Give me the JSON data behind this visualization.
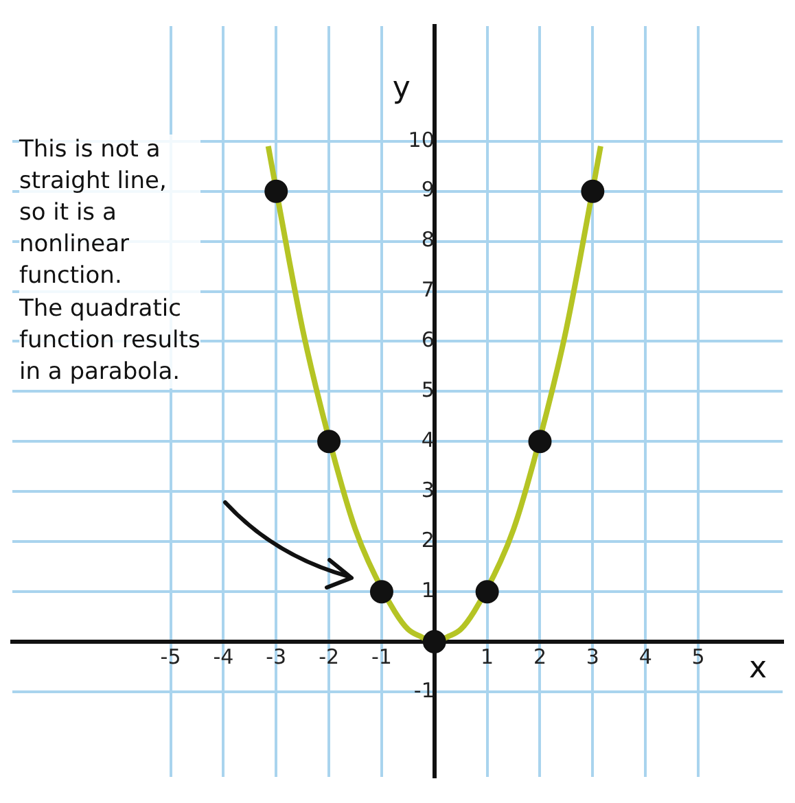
{
  "chart_data": {
    "type": "line",
    "xlabel": "x",
    "ylabel": "y",
    "annotations": [
      "This is not a\nstraight line,\nso it is a\nnonlinear\nfunction.\nThe quadratic\nfunction results\nin a parabola."
    ],
    "xlim": [
      -8,
      6.6
    ],
    "ylim": [
      -2.7,
      12.3
    ],
    "xticks": [
      -5,
      -4,
      -3,
      -2,
      -1,
      {
        "value": 0,
        "label": null
      },
      1,
      2,
      3,
      4,
      5
    ],
    "yticks": [
      -1,
      {
        "value": 0,
        "label": null
      },
      1,
      2,
      3,
      4,
      5,
      6,
      7,
      8,
      9,
      10
    ],
    "grid": true,
    "legend": false,
    "series": [
      {
        "type": "line",
        "color": "#b5c424",
        "marker": "none",
        "x": [
          -3.15,
          -2.75,
          -2.5,
          -2.25,
          -1.75,
          -1.5,
          -1.25,
          -0.75,
          -0.5,
          -0.25,
          0,
          0.25,
          0.5,
          0.75,
          1.25,
          1.5,
          1.75,
          2.25,
          2.5,
          2.75,
          3.15
        ],
        "values": [
          9.9,
          7.6,
          6.25,
          5.1,
          3.1,
          2.25,
          1.6,
          0.6,
          0.25,
          0.1,
          0,
          0.1,
          0.25,
          0.6,
          1.6,
          2.25,
          3.1,
          5.1,
          6.25,
          7.6,
          9.9
        ]
      },
      {
        "type": "scatter",
        "color": "#111111",
        "marker": "circle",
        "x": [
          -3,
          -2,
          -1,
          0,
          1,
          2,
          3
        ],
        "values": [
          9,
          4,
          1,
          0,
          1,
          4,
          9
        ]
      }
    ]
  }
}
